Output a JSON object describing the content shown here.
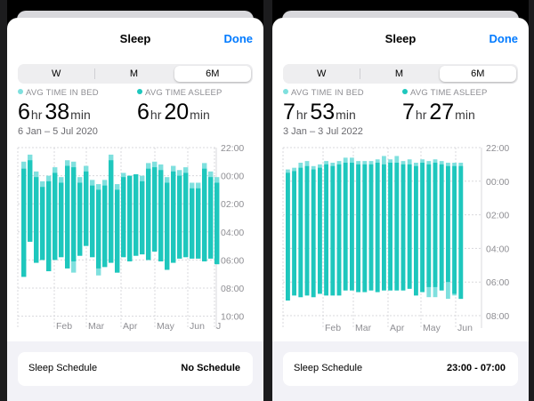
{
  "colors": {
    "in_bed": "#7fe0de",
    "asleep": "#1ec7bd",
    "link": "#007aff",
    "grid": "#d8d8dc",
    "axis_text": "#8e8e93"
  },
  "panels": [
    {
      "header": {
        "title": "Sleep",
        "done_label": "Done"
      },
      "segments": [
        "W",
        "M",
        "6M"
      ],
      "selected_segment": "6M",
      "legend": {
        "in_bed": "AVG TIME IN BED",
        "asleep": "AVG TIME ASLEEP"
      },
      "stats": {
        "in_bed": {
          "hours": "6",
          "hr_unit": "hr",
          "minutes": "38",
          "min_unit": "min"
        },
        "asleep": {
          "hours": "6",
          "hr_unit": "hr",
          "minutes": "20",
          "min_unit": "min"
        }
      },
      "date_range": "6 Jan – 5 Jul 2020",
      "schedule": {
        "label": "Sleep Schedule",
        "value": "No Schedule"
      }
    },
    {
      "header": {
        "title": "Sleep",
        "done_label": "Done"
      },
      "segments": [
        "W",
        "M",
        "6M"
      ],
      "selected_segment": "6M",
      "legend": {
        "in_bed": "AVG TIME IN BED",
        "asleep": "AVG TIME ASLEEP"
      },
      "stats": {
        "in_bed": {
          "hours": "7",
          "hr_unit": "hr",
          "minutes": "53",
          "min_unit": "min"
        },
        "asleep": {
          "hours": "7",
          "hr_unit": "hr",
          "minutes": "27",
          "min_unit": "min"
        }
      },
      "date_range": "3 Jan – 3 Jul 2022",
      "schedule": {
        "label": "Sleep Schedule",
        "value": "23:00 - 07:00"
      }
    }
  ],
  "chart_data": [
    {
      "type": "bar",
      "y_ticks": [
        "22:00",
        "00:00",
        "02:00",
        "04:00",
        "06:00",
        "08:00",
        "10:00"
      ],
      "y_range_hours": [
        22,
        34
      ],
      "x_ticks": [
        "Feb",
        "Mar",
        "Apr",
        "May",
        "Jun",
        "J"
      ],
      "series": [
        {
          "name": "AVG TIME IN BED",
          "ranges": [
            [
              23.0,
              31.2
            ],
            [
              22.5,
              28.7
            ],
            [
              23.7,
              30.2
            ],
            [
              24.4,
              30.0
            ],
            [
              24.0,
              30.8
            ],
            [
              23.4,
              30.0
            ],
            [
              24.1,
              29.8
            ],
            [
              22.9,
              30.6
            ],
            [
              23.0,
              30.9
            ],
            [
              24.1,
              29.7
            ],
            [
              23.3,
              29.0
            ],
            [
              24.3,
              29.8
            ],
            [
              24.6,
              31.1
            ],
            [
              24.3,
              30.5
            ],
            [
              22.5,
              30.2
            ],
            [
              24.6,
              30.9
            ],
            [
              23.8,
              29.8
            ],
            [
              24.6,
              30.1
            ],
            [
              24.8,
              29.7
            ],
            [
              24.0,
              29.6
            ],
            [
              23.1,
              30.0
            ],
            [
              23.0,
              29.4
            ],
            [
              23.2,
              30.1
            ],
            [
              24.1,
              30.7
            ],
            [
              23.3,
              30.2
            ],
            [
              23.6,
              29.9
            ],
            [
              23.4,
              29.8
            ],
            [
              24.5,
              29.9
            ],
            [
              24.5,
              29.9
            ],
            [
              23.1,
              30.1
            ],
            [
              23.7,
              29.9
            ],
            [
              24.1,
              30.3
            ]
          ]
        },
        {
          "name": "AVG TIME ASLEEP",
          "ranges": [
            [
              23.5,
              31.2
            ],
            [
              22.9,
              28.7
            ],
            [
              24.1,
              30.2
            ],
            [
              24.8,
              30.0
            ],
            [
              24.4,
              30.8
            ],
            [
              23.8,
              30.0
            ],
            [
              24.5,
              29.8
            ],
            [
              23.3,
              30.6
            ],
            [
              23.4,
              30.1
            ],
            [
              24.5,
              29.7
            ],
            [
              23.7,
              29.0
            ],
            [
              24.7,
              29.8
            ],
            [
              25.0,
              30.6
            ],
            [
              24.7,
              30.5
            ],
            [
              22.9,
              30.2
            ],
            [
              25.0,
              30.9
            ],
            [
              24.1,
              29.8
            ],
            [
              24.0,
              30.1
            ],
            [
              23.9,
              29.7
            ],
            [
              24.4,
              29.6
            ],
            [
              23.5,
              30.0
            ],
            [
              23.4,
              29.4
            ],
            [
              23.6,
              30.1
            ],
            [
              24.5,
              30.7
            ],
            [
              23.7,
              30.2
            ],
            [
              24.0,
              29.9
            ],
            [
              23.8,
              29.8
            ],
            [
              24.9,
              29.9
            ],
            [
              24.9,
              29.9
            ],
            [
              23.5,
              30.1
            ],
            [
              24.1,
              29.9
            ],
            [
              24.5,
              30.3
            ]
          ]
        }
      ]
    },
    {
      "type": "bar",
      "y_ticks": [
        "22:00",
        "00:00",
        "02:00",
        "04:00",
        "06:00",
        "08:00"
      ],
      "y_range_hours": [
        22,
        32
      ],
      "x_ticks": [
        "Feb",
        "Mar",
        "Apr",
        "May",
        "Jun"
      ],
      "series": [
        {
          "name": "AVG TIME IN BED",
          "ranges": [
            [
              23.3,
              31.1
            ],
            [
              23.2,
              30.8
            ],
            [
              22.9,
              30.9
            ],
            [
              22.8,
              30.8
            ],
            [
              23.1,
              30.9
            ],
            [
              23.0,
              30.7
            ],
            [
              22.8,
              30.8
            ],
            [
              22.9,
              30.8
            ],
            [
              22.8,
              30.8
            ],
            [
              22.6,
              30.5
            ],
            [
              22.6,
              30.5
            ],
            [
              22.8,
              30.6
            ],
            [
              22.8,
              30.6
            ],
            [
              22.8,
              30.5
            ],
            [
              22.7,
              30.6
            ],
            [
              22.5,
              30.5
            ],
            [
              22.7,
              30.5
            ],
            [
              22.5,
              30.5
            ],
            [
              22.8,
              30.5
            ],
            [
              22.7,
              30.4
            ],
            [
              22.9,
              30.8
            ],
            [
              22.7,
              30.6
            ],
            [
              22.8,
              30.9
            ],
            [
              22.7,
              30.9
            ],
            [
              22.8,
              30.5
            ],
            [
              22.9,
              31.0
            ],
            [
              22.9,
              30.8
            ],
            [
              22.9,
              31.0
            ]
          ]
        },
        {
          "name": "AVG TIME ASLEEP",
          "ranges": [
            [
              23.5,
              31.1
            ],
            [
              23.4,
              30.8
            ],
            [
              23.2,
              30.9
            ],
            [
              23.1,
              30.8
            ],
            [
              23.3,
              30.9
            ],
            [
              23.2,
              30.7
            ],
            [
              23.0,
              30.8
            ],
            [
              23.1,
              30.8
            ],
            [
              23.0,
              30.8
            ],
            [
              22.9,
              30.5
            ],
            [
              22.9,
              30.5
            ],
            [
              23.0,
              30.6
            ],
            [
              23.0,
              30.6
            ],
            [
              23.0,
              30.5
            ],
            [
              22.9,
              30.6
            ],
            [
              23.0,
              30.5
            ],
            [
              22.9,
              30.5
            ],
            [
              22.9,
              30.5
            ],
            [
              23.0,
              30.5
            ],
            [
              23.0,
              30.4
            ],
            [
              23.1,
              30.8
            ],
            [
              22.9,
              30.6
            ],
            [
              23.0,
              30.3
            ],
            [
              22.9,
              30.3
            ],
            [
              23.0,
              30.5
            ],
            [
              23.1,
              30.0
            ],
            [
              23.1,
              30.7
            ],
            [
              23.1,
              31.0
            ]
          ]
        }
      ]
    }
  ]
}
